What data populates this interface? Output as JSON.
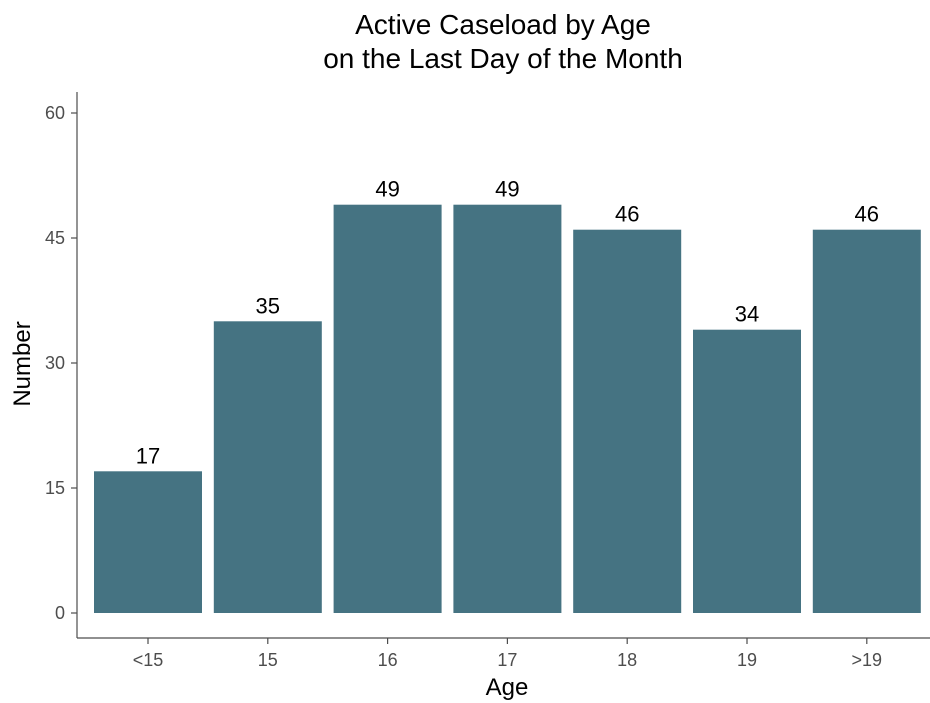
{
  "chart_data": {
    "type": "bar",
    "title": [
      "Active Caseload by Age",
      "on the Last Day of the Month"
    ],
    "xlabel": "Age",
    "ylabel": "Number",
    "categories": [
      "<15",
      "15",
      "16",
      "17",
      "18",
      "19",
      ">19"
    ],
    "values": [
      17,
      35,
      49,
      49,
      46,
      34,
      46
    ],
    "ylim": [
      0,
      60
    ],
    "yticks": [
      0,
      15,
      30,
      45,
      60
    ],
    "bar_color": "#457382",
    "grid": false,
    "legend": "none",
    "data_labels": true
  }
}
